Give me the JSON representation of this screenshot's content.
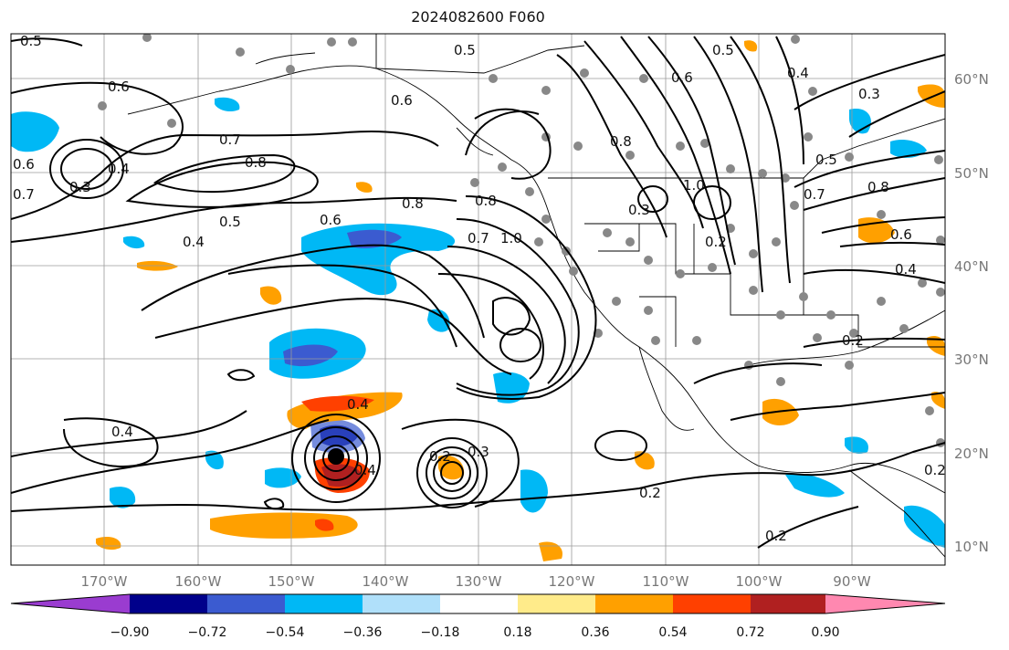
{
  "title": "2024082600 F060",
  "latitudes": [
    "60°N",
    "50°N",
    "40°N",
    "30°N",
    "20°N",
    "10°N"
  ],
  "longitudes": [
    "170°W",
    "160°W",
    "150°W",
    "140°W",
    "130°W",
    "120°W",
    "110°W",
    "100°W",
    "90°W"
  ],
  "colorbar": {
    "colors": [
      "#9a3cd0",
      "#00008b",
      "#3b5bd0",
      "#00b8f5",
      "#b0e0fa",
      "#ffffff",
      "#ffeb8a",
      "#ffa000",
      "#ff4000",
      "#b02020",
      "#ff88b0"
    ],
    "labels": [
      "−0.90",
      "−0.72",
      "−0.54",
      "−0.36",
      "−0.18",
      "0.18",
      "0.36",
      "0.54",
      "0.72",
      "0.90"
    ]
  },
  "contour_labels": [
    "0.5",
    "0.5",
    "0.6",
    "0.6",
    "0.7",
    "0.8",
    "0.4",
    "0.3",
    "0.6",
    "0.7",
    "0.5",
    "0.4",
    "0.6",
    "0.8",
    "0.8",
    "0.7",
    "1.0",
    "0.5",
    "0.8",
    "0.6",
    "1.0",
    "0.4",
    "0.3",
    "0.7",
    "0.5",
    "0.8",
    "0.6",
    "0.4",
    "0.4",
    "0.4",
    "0.4",
    "0.3",
    "0.2",
    "0.2",
    "0.2",
    "0.2",
    "0.2",
    "0.3",
    "0.2"
  ]
}
